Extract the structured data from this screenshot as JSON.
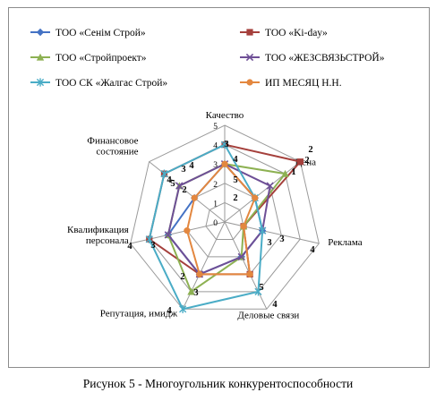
{
  "caption": "Рисунок 5 - Многоугольник конкурентоспособности",
  "chart_data": {
    "type": "radar",
    "categories": [
      "Качество",
      "Цена",
      "Реклама",
      "Деловые связи",
      "Репутация, имидж",
      "Квалификация персонала",
      "Финансовое состояние"
    ],
    "rlim": [
      0,
      5
    ],
    "ticks": [
      "0",
      "1",
      "2",
      "3",
      "4",
      "5"
    ],
    "grid": true,
    "legend_position": "top",
    "series": [
      {
        "name": "ТОО «Сенім Строй»",
        "color": "#4472c4",
        "marker": "diamond",
        "values": [
          3,
          2,
          2,
          2,
          3,
          3,
          2
        ]
      },
      {
        "name": "ТОО «Ki-day»",
        "color": "#a5403c",
        "marker": "square",
        "values": [
          4,
          5,
          1,
          3,
          3,
          4,
          4
        ]
      },
      {
        "name": "ТОО «Стройпроект»",
        "color": "#8db152",
        "marker": "triangle",
        "values": [
          3,
          4,
          1,
          2,
          4,
          3,
          3
        ]
      },
      {
        "name": "ТОО «ЖЕЗСВЯЗЬСТРОЙ»",
        "color": "#6e4f96",
        "marker": "x",
        "values": [
          3,
          3,
          2,
          2,
          3,
          3,
          3
        ]
      },
      {
        "name": "ТОО СК «Жалгас Строй»",
        "color": "#4aacc6",
        "marker": "star",
        "values": [
          4,
          2,
          2,
          4,
          5,
          4,
          4
        ]
      },
      {
        "name": "ИП МЕСЯЦ Н.Н.",
        "color": "#e3873f",
        "marker": "circle",
        "values": [
          3,
          2,
          1,
          3,
          3,
          2,
          2
        ]
      }
    ],
    "data_labels": [
      "3",
      "4",
      "5",
      "2",
      "2",
      "1",
      "2",
      "3",
      "3",
      "4",
      "5",
      "4",
      "3",
      "2",
      "4",
      "4",
      "3",
      "2",
      "5",
      "4",
      "3",
      "4"
    ]
  }
}
